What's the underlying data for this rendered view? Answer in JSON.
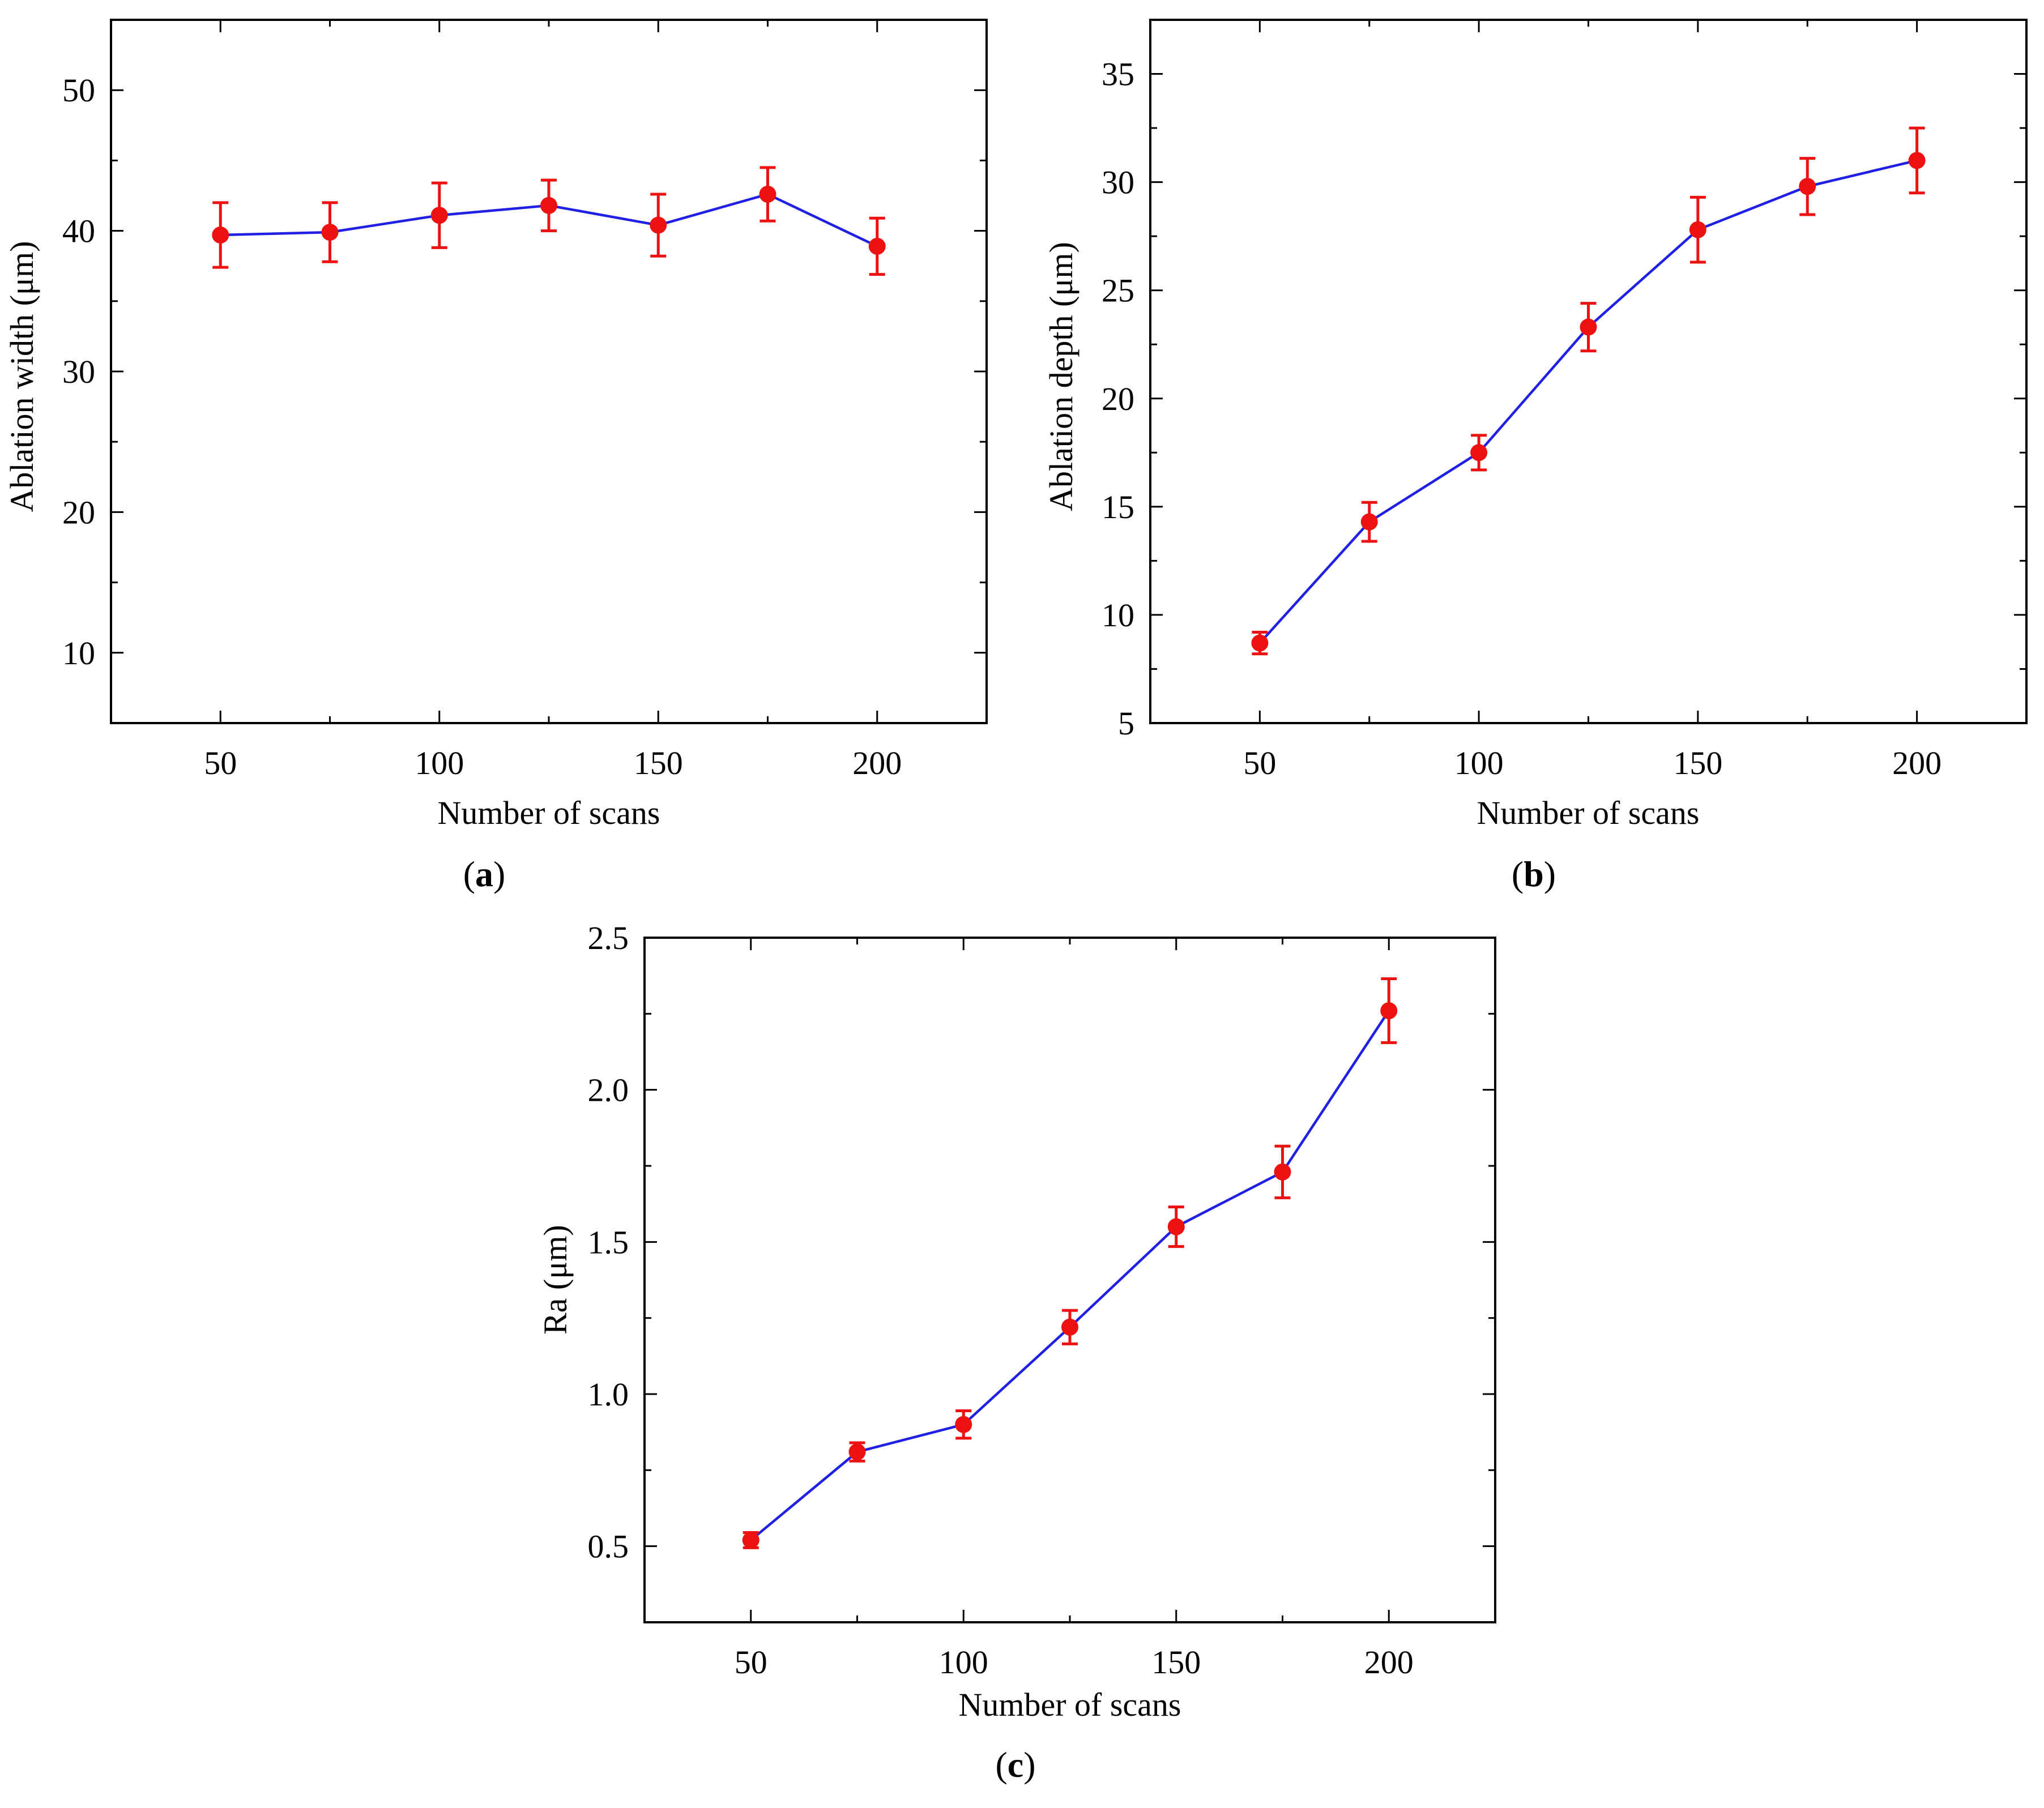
{
  "colors": {
    "line": "#1f1fe6",
    "marker": "#ee1111",
    "axis": "#000000",
    "background": "#ffffff"
  },
  "chart_data": [
    {
      "id": "a",
      "type": "line",
      "panel_label": "a",
      "title": "",
      "xlabel": "Number of scans",
      "ylabel": "Ablation width (μm)",
      "xlim": [
        25,
        225
      ],
      "ylim": [
        5,
        55
      ],
      "xticks": [
        50,
        100,
        150,
        200
      ],
      "xticklabels": [
        "50",
        "100",
        "150",
        "200"
      ],
      "xminor": [
        75,
        125,
        175
      ],
      "yticks": [
        10,
        20,
        30,
        40,
        50
      ],
      "yticklabels": [
        "10",
        "20",
        "30",
        "40",
        "50"
      ],
      "yminor": [
        15,
        25,
        35,
        45
      ],
      "grid": false,
      "series": [
        {
          "name": "Ablation width",
          "x": [
            50,
            75,
            100,
            125,
            150,
            175,
            200
          ],
          "y": [
            39.7,
            39.9,
            41.1,
            41.8,
            40.4,
            42.6,
            38.9
          ],
          "yerr": [
            2.3,
            2.1,
            2.3,
            1.8,
            2.2,
            1.9,
            2.0
          ]
        }
      ]
    },
    {
      "id": "b",
      "type": "line",
      "panel_label": "b",
      "title": "",
      "xlabel": "Number of scans",
      "ylabel": "Ablation depth (μm)",
      "xlim": [
        25,
        225
      ],
      "ylim": [
        5,
        37.5
      ],
      "xticks": [
        50,
        100,
        150,
        200
      ],
      "xticklabels": [
        "50",
        "100",
        "150",
        "200"
      ],
      "xminor": [
        75,
        125,
        175
      ],
      "yticks": [
        5,
        10,
        15,
        20,
        25,
        30,
        35
      ],
      "yticklabels": [
        "5",
        "10",
        "15",
        "20",
        "25",
        "30",
        "35"
      ],
      "yminor": [
        7.5,
        12.5,
        17.5,
        22.5,
        27.5,
        32.5
      ],
      "grid": false,
      "series": [
        {
          "name": "Ablation depth",
          "x": [
            50,
            75,
            100,
            125,
            150,
            175,
            200
          ],
          "y": [
            8.7,
            14.3,
            17.5,
            23.3,
            27.8,
            29.8,
            31.0
          ],
          "yerr": [
            0.5,
            0.9,
            0.8,
            1.1,
            1.5,
            1.3,
            1.5
          ]
        }
      ]
    },
    {
      "id": "c",
      "type": "line",
      "panel_label": "c",
      "title": "",
      "xlabel": "Number of scans",
      "ylabel": "Ra (μm)",
      "xlim": [
        25,
        225
      ],
      "ylim": [
        0.25,
        2.5
      ],
      "xticks": [
        50,
        100,
        150,
        200
      ],
      "xticklabels": [
        "50",
        "100",
        "150",
        "200"
      ],
      "xminor": [
        75,
        125,
        175
      ],
      "yticks": [
        0.5,
        1.0,
        1.5,
        2.0,
        2.5
      ],
      "yticklabels": [
        "0.5",
        "1.0",
        "1.5",
        "2.0",
        "2.5"
      ],
      "yminor": [
        0.75,
        1.25,
        1.75,
        2.25
      ],
      "grid": false,
      "series": [
        {
          "name": "Ra",
          "x": [
            50,
            75,
            100,
            125,
            150,
            175,
            200
          ],
          "y": [
            0.52,
            0.81,
            0.9,
            1.22,
            1.55,
            1.73,
            2.26
          ],
          "yerr": [
            0.025,
            0.03,
            0.045,
            0.055,
            0.065,
            0.085,
            0.105
          ]
        }
      ]
    }
  ]
}
